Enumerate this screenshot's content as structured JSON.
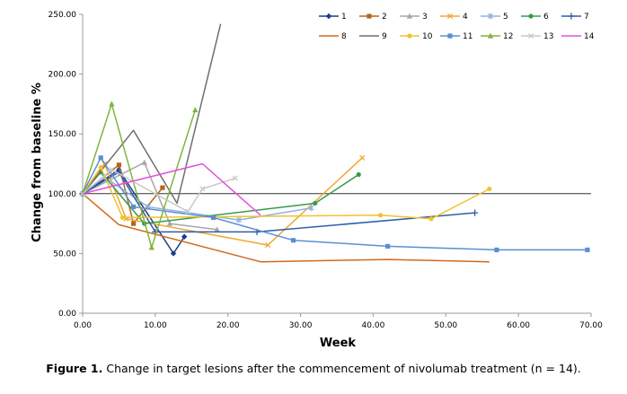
{
  "chart_data": {
    "type": "line",
    "xlabel": "Week",
    "ylabel": "Change from baseline %",
    "xlim": [
      0,
      70
    ],
    "ylim": [
      0,
      250
    ],
    "x_ticks": [
      "0.00",
      "10.00",
      "20.00",
      "30.00",
      "40.00",
      "50.00",
      "60.00",
      "70.00"
    ],
    "y_ticks": [
      "0.00",
      "50.00",
      "100.00",
      "150.00",
      "200.00",
      "250.00"
    ],
    "x_tick_values": [
      0,
      10,
      20,
      30,
      40,
      50,
      60,
      70
    ],
    "y_tick_values": [
      0,
      50,
      100,
      150,
      200,
      250
    ],
    "reference_line": 100,
    "grid": false,
    "legend_position": "top-right",
    "series": [
      {
        "name": "1",
        "color": "#1f3a8a",
        "marker": "diamond",
        "points": [
          [
            0,
            100
          ],
          [
            5,
            120
          ],
          [
            12.5,
            50
          ],
          [
            14,
            64
          ]
        ]
      },
      {
        "name": "2",
        "color": "#b5651d",
        "marker": "square",
        "points": [
          [
            0,
            100
          ],
          [
            5,
            124
          ],
          [
            7,
            75
          ],
          [
            11,
            105
          ]
        ]
      },
      {
        "name": "3",
        "color": "#a6a6a6",
        "marker": "triangle",
        "points": [
          [
            0,
            100
          ],
          [
            8.5,
            126
          ],
          [
            12,
            75
          ],
          [
            18.5,
            70
          ]
        ]
      },
      {
        "name": "4",
        "color": "#f0a832",
        "marker": "x",
        "points": [
          [
            0,
            100
          ],
          [
            3,
            125
          ],
          [
            6,
            79
          ],
          [
            25.5,
            57
          ],
          [
            38.5,
            130
          ]
        ]
      },
      {
        "name": "5",
        "color": "#8fb4e3",
        "marker": "asterisk",
        "points": [
          [
            0,
            100
          ],
          [
            3,
            114
          ],
          [
            9,
            89
          ],
          [
            21.5,
            78
          ],
          [
            31.5,
            88
          ]
        ]
      },
      {
        "name": "6",
        "color": "#3a9a4a",
        "marker": "circle",
        "points": [
          [
            0,
            100
          ],
          [
            2.5,
            118
          ],
          [
            8.5,
            75
          ],
          [
            32,
            92
          ],
          [
            38,
            116
          ]
        ]
      },
      {
        "name": "7",
        "color": "#2e5fa8",
        "marker": "plus",
        "points": [
          [
            0,
            100
          ],
          [
            5,
            118
          ],
          [
            10,
            68
          ],
          [
            24,
            68
          ],
          [
            54,
            84
          ]
        ]
      },
      {
        "name": "8",
        "color": "#d2691e",
        "marker": "none",
        "points": [
          [
            0,
            100
          ],
          [
            5,
            74
          ],
          [
            24.5,
            43
          ],
          [
            42,
            45
          ],
          [
            56,
            43
          ]
        ]
      },
      {
        "name": "9",
        "color": "#6e6e6e",
        "marker": "none",
        "points": [
          [
            0,
            100
          ],
          [
            7,
            153
          ],
          [
            13,
            92
          ],
          [
            19,
            242
          ]
        ]
      },
      {
        "name": "10",
        "color": "#f2c12e",
        "marker": "circle",
        "points": [
          [
            0,
            100
          ],
          [
            2.5,
            122
          ],
          [
            5.5,
            80
          ],
          [
            41,
            82
          ],
          [
            48,
            79
          ],
          [
            56,
            104
          ]
        ]
      },
      {
        "name": "11",
        "color": "#5b8fd4",
        "marker": "square",
        "points": [
          [
            0,
            100
          ],
          [
            2.5,
            130
          ],
          [
            7,
            89
          ],
          [
            18,
            80
          ],
          [
            29,
            61
          ],
          [
            42,
            56
          ],
          [
            57,
            53
          ],
          [
            69.5,
            53
          ]
        ]
      },
      {
        "name": "12",
        "color": "#7fb53c",
        "marker": "triangle",
        "points": [
          [
            0,
            100
          ],
          [
            4,
            175
          ],
          [
            9.5,
            55
          ],
          [
            15.5,
            170
          ]
        ]
      },
      {
        "name": "13",
        "color": "#c8c8c8",
        "marker": "x",
        "points": [
          [
            0,
            100
          ],
          [
            4,
            120
          ],
          [
            14.5,
            85
          ],
          [
            16.5,
            104
          ],
          [
            21,
            113
          ]
        ]
      },
      {
        "name": "14",
        "color": "#e24fe0",
        "marker": "none",
        "points": [
          [
            0,
            100
          ],
          [
            16.5,
            125
          ],
          [
            24.5,
            82
          ]
        ]
      }
    ]
  },
  "caption": {
    "label": "Figure 1.",
    "text": "Change in target lesions after the commencement of nivolumab treatment (n = 14)."
  }
}
